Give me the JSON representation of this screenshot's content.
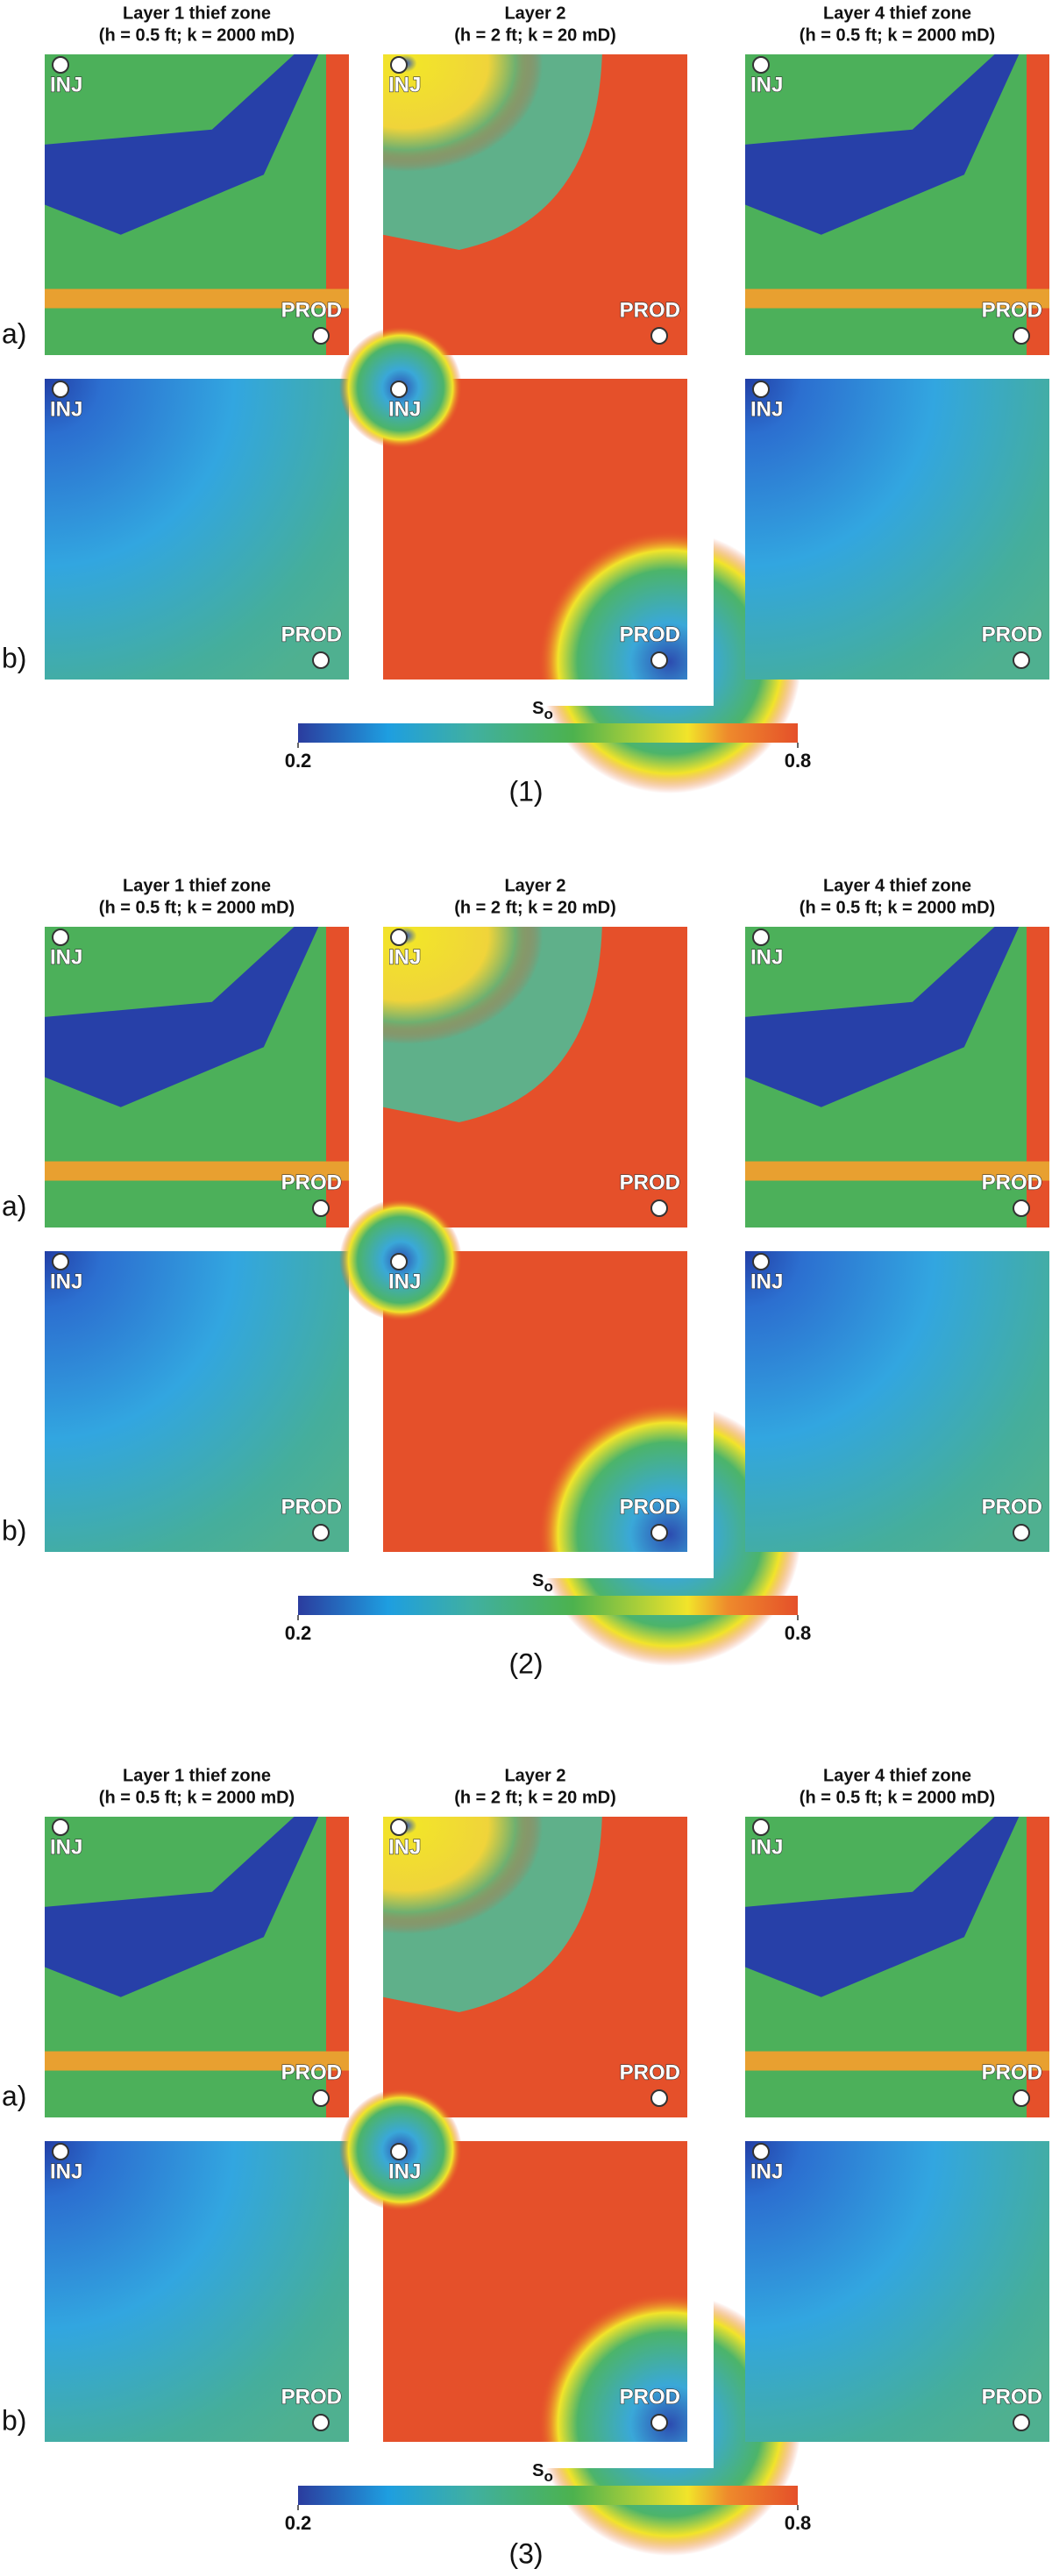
{
  "figure": {
    "groups": [
      {
        "caption": "(1)"
      },
      {
        "caption": "(2)"
      },
      {
        "caption": "(3)"
      }
    ],
    "columns": [
      {
        "title": "Layer 1 thief zone",
        "subtitle": "(h = 0.5 ft; k = 2000 mD)"
      },
      {
        "title": "Layer 2",
        "subtitle": "(h = 2 ft; k = 20 mD)"
      },
      {
        "title": "Layer 4 thief zone",
        "subtitle": "(h = 0.5 ft; k = 2000 mD)"
      }
    ],
    "rows": [
      "a)",
      "b)"
    ],
    "wells": {
      "injector": "INJ",
      "producer": "PROD"
    },
    "colorbar": {
      "label": "S",
      "label_subscript": "o",
      "lim": [
        0.2,
        0.8
      ],
      "ticks": [
        0.2,
        0.8
      ]
    }
  }
}
